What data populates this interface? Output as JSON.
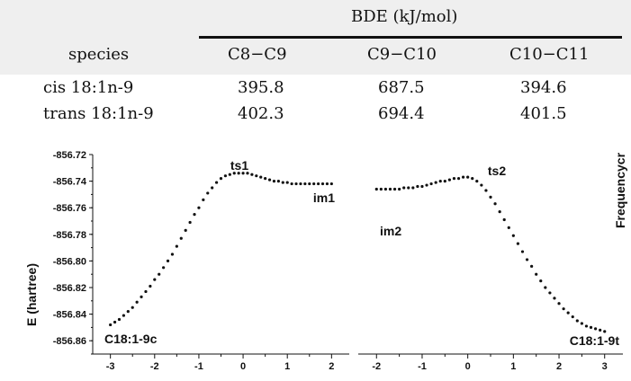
{
  "table": {
    "group_header": "BDE (kJ/mol)",
    "columns": [
      "species",
      "C8−C9",
      "C9−C10",
      "C10−C11"
    ],
    "rows": [
      {
        "species": "cis 18:1n-9",
        "c8_c9": "395.8",
        "c9_c10": "687.5",
        "c10_c11": "394.6"
      },
      {
        "species": "trans 18:1n-9",
        "c8_c9": "402.3",
        "c9_c10": "694.4",
        "c10_c11": "401.5"
      }
    ]
  },
  "chart_data": {
    "type": "scatter",
    "ylabel": "E (hartree)",
    "right_label": "Frequencycr",
    "ylim": [
      -856.87,
      -856.72
    ],
    "yticks": [
      "-856.72",
      "-856.74",
      "-856.76",
      "-856.78",
      "-856.80",
      "-856.82",
      "-856.84",
      "-856.86"
    ],
    "left_panel": {
      "xticks": [
        "-3",
        "-2",
        "-1",
        "0",
        "1",
        "2"
      ],
      "xlim": [
        -3.4,
        2.4
      ],
      "annotations": [
        "C18:1-9c",
        "ts1",
        "im1"
      ],
      "series": [
        {
          "x": [
            -3.0,
            -2.9,
            -2.8,
            -2.7,
            -2.6,
            -2.5,
            -2.4,
            -2.3,
            -2.2,
            -2.1,
            -2.0,
            -1.9,
            -1.8,
            -1.7,
            -1.6,
            -1.5,
            -1.4,
            -1.3,
            -1.2,
            -1.1,
            -1.0,
            -0.9,
            -0.8,
            -0.7,
            -0.6,
            -0.5,
            -0.4,
            -0.3,
            -0.2,
            -0.1,
            0.0,
            0.1,
            0.2,
            0.3,
            0.4,
            0.5,
            0.6,
            0.7,
            0.8,
            0.9,
            1.0,
            1.1,
            1.2,
            1.3,
            1.4,
            1.5,
            1.6,
            1.7,
            1.8,
            1.9,
            2.0
          ],
          "y": [
            -856.848,
            -856.846,
            -856.844,
            -856.841,
            -856.838,
            -856.835,
            -856.831,
            -856.827,
            -856.823,
            -856.819,
            -856.814,
            -856.81,
            -856.805,
            -856.8,
            -856.795,
            -856.789,
            -856.783,
            -856.777,
            -856.771,
            -856.765,
            -856.76,
            -856.754,
            -856.749,
            -856.745,
            -856.741,
            -856.738,
            -856.736,
            -856.735,
            -856.734,
            -856.734,
            -856.734,
            -856.734,
            -856.735,
            -856.736,
            -856.737,
            -856.738,
            -856.739,
            -856.74,
            -856.74,
            -856.741,
            -856.741,
            -856.742,
            -856.742,
            -856.742,
            -856.742,
            -856.742,
            -856.742,
            -856.742,
            -856.742,
            -856.742,
            -856.742
          ]
        }
      ]
    },
    "right_panel": {
      "xticks": [
        "-2",
        "-1",
        "0",
        "1",
        "2",
        "3"
      ],
      "xlim": [
        -2.4,
        3.4
      ],
      "annotations": [
        "im2",
        "ts2",
        "C18:1-9t"
      ],
      "series": [
        {
          "x": [
            -2.0,
            -1.9,
            -1.8,
            -1.7,
            -1.6,
            -1.5,
            -1.4,
            -1.3,
            -1.2,
            -1.1,
            -1.0,
            -0.9,
            -0.8,
            -0.7,
            -0.6,
            -0.5,
            -0.4,
            -0.3,
            -0.2,
            -0.1,
            0.0,
            0.1,
            0.2,
            0.3,
            0.4,
            0.5,
            0.6,
            0.7,
            0.8,
            0.9,
            1.0,
            1.1,
            1.2,
            1.3,
            1.4,
            1.5,
            1.6,
            1.7,
            1.8,
            1.9,
            2.0,
            2.1,
            2.2,
            2.3,
            2.4,
            2.5,
            2.6,
            2.7,
            2.8,
            2.9,
            3.0
          ],
          "y": [
            -856.746,
            -856.746,
            -856.746,
            -856.746,
            -856.746,
            -856.746,
            -856.745,
            -856.745,
            -856.745,
            -856.744,
            -856.744,
            -856.743,
            -856.742,
            -856.741,
            -856.74,
            -856.74,
            -856.739,
            -856.738,
            -856.738,
            -856.737,
            -856.737,
            -856.738,
            -856.74,
            -856.743,
            -856.747,
            -856.752,
            -856.757,
            -856.763,
            -856.769,
            -856.775,
            -856.781,
            -856.787,
            -856.793,
            -856.799,
            -856.804,
            -856.81,
            -856.815,
            -856.82,
            -856.824,
            -856.828,
            -856.832,
            -856.836,
            -856.839,
            -856.842,
            -856.845,
            -856.847,
            -856.849,
            -856.85,
            -856.851,
            -856.852,
            -856.853
          ]
        }
      ]
    }
  }
}
